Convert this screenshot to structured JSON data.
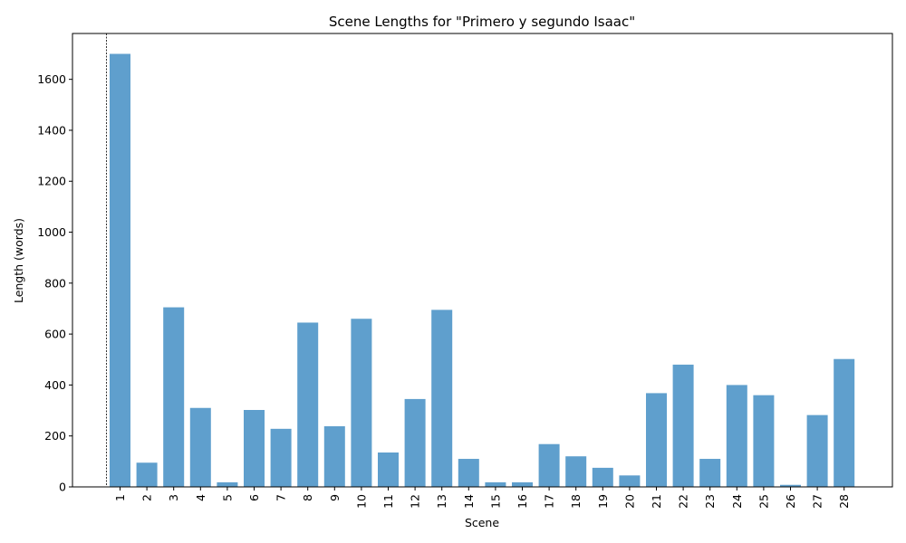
{
  "chart_data": {
    "type": "bar",
    "title": "Scene Lengths for \"Primero y segundo Isaac\"",
    "xlabel": "Scene",
    "ylabel": "Length (words)",
    "categories": [
      "1",
      "2",
      "3",
      "4",
      "5",
      "6",
      "7",
      "8",
      "9",
      "10",
      "11",
      "12",
      "13",
      "14",
      "15",
      "16",
      "17",
      "18",
      "19",
      "20",
      "21",
      "22",
      "23",
      "24",
      "25",
      "26",
      "27",
      "28"
    ],
    "values": [
      1700,
      95,
      705,
      310,
      18,
      302,
      228,
      645,
      238,
      660,
      135,
      345,
      695,
      110,
      18,
      18,
      168,
      120,
      75,
      45,
      368,
      480,
      110,
      400,
      360,
      8,
      282,
      502
    ],
    "ylim": [
      0,
      1780
    ],
    "yticks": [
      0,
      200,
      400,
      600,
      800,
      1000,
      1200,
      1400,
      1600
    ],
    "bar_color": "#5f9fcd",
    "marker_line": "dashed vertical line before scene 1",
    "grid": false,
    "legend": "none"
  }
}
